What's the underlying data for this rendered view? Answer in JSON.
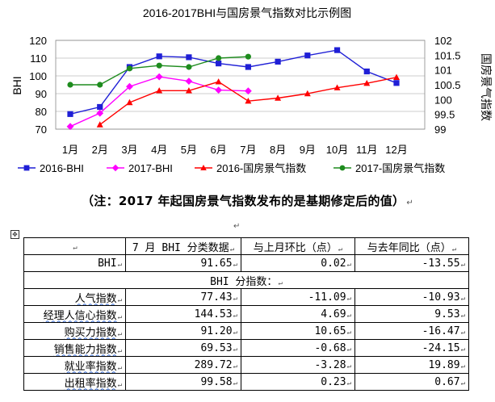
{
  "chart_data": {
    "type": "line",
    "title": "2016-2017BHI与国房景气指数对比示例图",
    "categories": [
      "1月",
      "2月",
      "3月",
      "4月",
      "5月",
      "6月",
      "7月",
      "8月",
      "9月",
      "10月",
      "11月",
      "12月"
    ],
    "left_axis": {
      "label": "BHI",
      "range": [
        70,
        120
      ],
      "ticks": [
        "70",
        "80",
        "90",
        "100",
        "110",
        "120"
      ]
    },
    "right_axis": {
      "label": "国房景气指数",
      "range": [
        99,
        102
      ],
      "ticks": [
        "99",
        "99.5",
        "100",
        "100.5",
        "101",
        "101.5",
        "102"
      ]
    },
    "series": [
      {
        "name": "2016-BHI",
        "axis": "left",
        "color": "#1f1fd6",
        "marker": "square",
        "values": [
          78.5,
          82.5,
          105,
          111,
          110.5,
          107,
          105,
          108,
          111.5,
          114.5,
          102.5,
          96
        ]
      },
      {
        "name": "2017-BHI",
        "axis": "left",
        "color": "#ff00ff",
        "marker": "diamond",
        "values": [
          71.5,
          79,
          94,
          99.5,
          97,
          92,
          91.5,
          null,
          null,
          null,
          null,
          null
        ]
      },
      {
        "name": "2016-国房景气指数",
        "axis": "right",
        "color": "#ff0000",
        "marker": "triangle",
        "values": [
          null,
          99.15,
          99.9,
          100.3,
          100.3,
          100.6,
          99.95,
          100.05,
          100.2,
          100.4,
          100.55,
          100.75
        ]
      },
      {
        "name": "2017-国房景气指数",
        "axis": "right",
        "color": "#1e8c1e",
        "marker": "circle",
        "values": [
          100.5,
          100.5,
          101.05,
          101.15,
          101.1,
          101.4,
          101.45,
          null,
          null,
          null,
          null,
          null
        ]
      }
    ],
    "grid": true,
    "legend": "bottom"
  },
  "note": {
    "text": "（注：2017 年起国房景气指数发布的是基期修定后的值）",
    "mark": "↵"
  },
  "marks": {
    "return": "↵",
    "cell": "↵",
    "handle": "✥"
  },
  "table": {
    "header": [
      "",
      "7 月 BHI 分类数据",
      "与上月环比（点）",
      "与去年同比（点）"
    ],
    "bhi_row": {
      "label": "BHI",
      "values": [
        "91.65",
        "0.02",
        "-13.55"
      ]
    },
    "sub_header": "BHI 分指数：",
    "rows": [
      {
        "label": "人气指数",
        "values": [
          "77.43",
          "-11.09",
          "-10.93"
        ]
      },
      {
        "label": "经理人信心指数",
        "values": [
          "144.53",
          "4.69",
          "9.53"
        ]
      },
      {
        "label": "购买力指数",
        "values": [
          "91.20",
          "10.65",
          "-16.47"
        ]
      },
      {
        "label": "销售能力指数",
        "values": [
          "69.53",
          "-0.68",
          "-24.15"
        ]
      },
      {
        "label": "就业率指数",
        "values": [
          "289.72",
          "-3.28",
          "19.89"
        ]
      },
      {
        "label": "出租率指数",
        "values": [
          "99.58",
          "0.23",
          "0.67"
        ]
      }
    ]
  }
}
